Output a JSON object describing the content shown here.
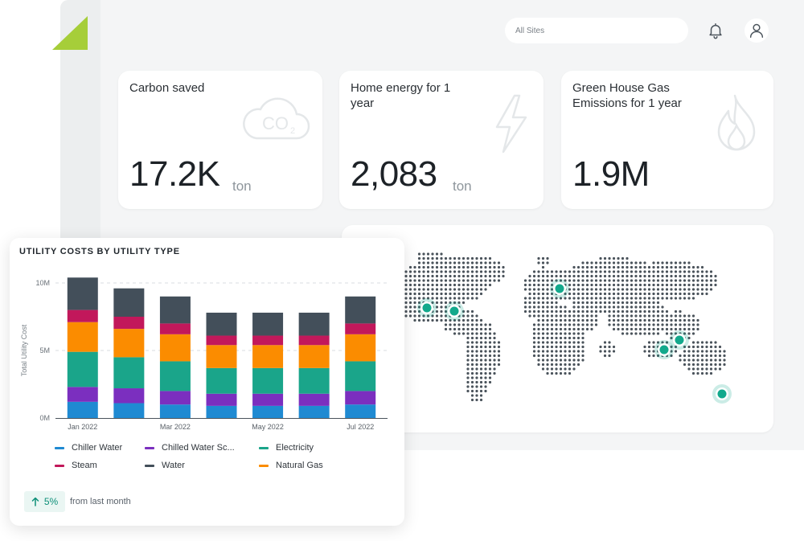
{
  "header": {
    "site_selector_placeholder": "All Sites",
    "icons": [
      "bell-icon",
      "user-icon"
    ]
  },
  "colors": {
    "brand_green": "#a6ce39",
    "accent_teal": "#12a98c",
    "chiller_water": "#1f8ad2",
    "chilled_water_sc": "#7b2fbf",
    "electricity": "#1aa58a",
    "steam": "#c2185b",
    "water": "#434f5a",
    "natural_gas": "#fb8c00"
  },
  "stats": [
    {
      "title": "Carbon saved",
      "value": "17.2K",
      "unit": "ton",
      "icon": "co2-cloud-icon"
    },
    {
      "title": "Home energy for 1 year",
      "value": "2,083",
      "unit": "ton",
      "icon": "lightning-icon"
    },
    {
      "title": "Green House Gas Emissions for 1 year",
      "value": "1.9M",
      "unit": "",
      "icon": "flame-icon"
    }
  ],
  "map": {
    "markers": 6
  },
  "chart_card": {
    "title": "UTILITY COSTS BY UTILITY TYPE",
    "delta": "5%",
    "delta_icon": "arrow-up-icon",
    "delta_note": "from last month"
  },
  "chart_data": {
    "type": "bar",
    "stacked": true,
    "title": "UTILITY COSTS BY UTILITY TYPE",
    "xlabel": "",
    "ylabel": "Total Utility Cost",
    "ylim": [
      0,
      10000000
    ],
    "y_ticks": [
      "0M",
      "5M",
      "10M"
    ],
    "y_tick_values": [
      0,
      5000000,
      10000000
    ],
    "x_tick_labels": [
      "Jan 2022",
      "",
      "Mar 2022",
      "",
      "May 2022",
      "",
      "Jul 2022"
    ],
    "categories": [
      "Jan 2022",
      "Feb 2022",
      "Mar 2022",
      "Apr 2022",
      "May 2022",
      "Jun 2022",
      "Jul 2022"
    ],
    "grid": true,
    "legend_placement": "bottom",
    "series": [
      {
        "name": "Chiller Water",
        "color": "#1f8ad2",
        "values": [
          1200000,
          1100000,
          1000000,
          900000,
          900000,
          900000,
          1000000
        ]
      },
      {
        "name": "Chilled Water Sc...",
        "color": "#7b2fbf",
        "values": [
          1100000,
          1100000,
          1000000,
          900000,
          900000,
          900000,
          1000000
        ]
      },
      {
        "name": "Electricity",
        "color": "#1aa58a",
        "values": [
          2600000,
          2300000,
          2200000,
          1900000,
          1900000,
          1900000,
          2200000
        ]
      },
      {
        "name": "Natural Gas",
        "color": "#fb8c00",
        "values": [
          2200000,
          2100000,
          2000000,
          1700000,
          1700000,
          1700000,
          2000000
        ]
      },
      {
        "name": "Steam",
        "color": "#c2185b",
        "values": [
          900000,
          900000,
          800000,
          700000,
          700000,
          700000,
          800000
        ]
      },
      {
        "name": "Water",
        "color": "#434f5a",
        "values": [
          2400000,
          2100000,
          2000000,
          1700000,
          1700000,
          1700000,
          2000000
        ]
      }
    ],
    "legend_order": [
      "Chiller Water",
      "Chilled Water Sc...",
      "Electricity",
      "Steam",
      "Water",
      "Natural Gas"
    ]
  }
}
